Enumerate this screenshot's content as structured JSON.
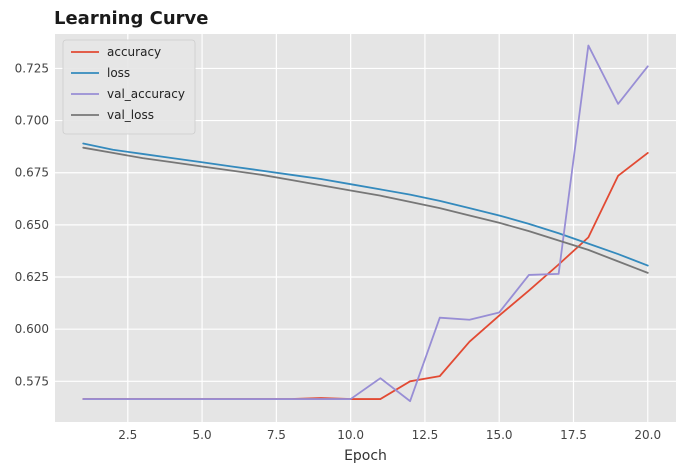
{
  "chart_data": {
    "type": "line",
    "title": "Learning Curve",
    "xlabel": "Epoch",
    "ylabel": "",
    "xlim": [
      0.05,
      20.95
    ],
    "ylim": [
      0.5555,
      0.7415
    ],
    "xticks": [
      2.5,
      5.0,
      7.5,
      10.0,
      12.5,
      15.0,
      17.5,
      20.0
    ],
    "xtick_labels": [
      "2.5",
      "5.0",
      "7.5",
      "10.0",
      "12.5",
      "15.0",
      "17.5",
      "20.0"
    ],
    "yticks": [
      0.575,
      0.6,
      0.625,
      0.65,
      0.675,
      0.7,
      0.725
    ],
    "ytick_labels": [
      "0.575",
      "0.600",
      "0.625",
      "0.650",
      "0.675",
      "0.700",
      "0.725"
    ],
    "grid": true,
    "legend_position": "top-left",
    "x": [
      1,
      2,
      3,
      4,
      5,
      6,
      7,
      8,
      9,
      10,
      11,
      12,
      13,
      14,
      15,
      16,
      17,
      18,
      19,
      20
    ],
    "series": [
      {
        "name": "accuracy",
        "color": "#E24A33",
        "values": [
          0.5665,
          0.5665,
          0.5665,
          0.5665,
          0.5665,
          0.5665,
          0.5665,
          0.5665,
          0.567,
          0.5665,
          0.5665,
          0.575,
          0.5775,
          0.594,
          0.6065,
          0.6185,
          0.631,
          0.644,
          0.6735,
          0.6845
        ]
      },
      {
        "name": "loss",
        "color": "#348ABD",
        "values": [
          0.689,
          0.686,
          0.684,
          0.682,
          0.68,
          0.678,
          0.676,
          0.674,
          0.672,
          0.6695,
          0.667,
          0.6645,
          0.6615,
          0.658,
          0.6545,
          0.6505,
          0.646,
          0.641,
          0.636,
          0.6305
        ]
      },
      {
        "name": "val_accuracy",
        "color": "#988ED5",
        "values": [
          0.5665,
          0.5665,
          0.5665,
          0.5665,
          0.5665,
          0.5665,
          0.5665,
          0.5665,
          0.5665,
          0.5665,
          0.5765,
          0.5655,
          0.6055,
          0.6045,
          0.608,
          0.626,
          0.6265,
          0.736,
          0.708,
          0.726
        ]
      },
      {
        "name": "val_loss",
        "color": "#777777",
        "values": [
          0.687,
          0.6845,
          0.682,
          0.68,
          0.678,
          0.676,
          0.674,
          0.6715,
          0.669,
          0.6665,
          0.664,
          0.661,
          0.658,
          0.6545,
          0.651,
          0.647,
          0.6425,
          0.638,
          0.6325,
          0.627
        ]
      }
    ]
  }
}
